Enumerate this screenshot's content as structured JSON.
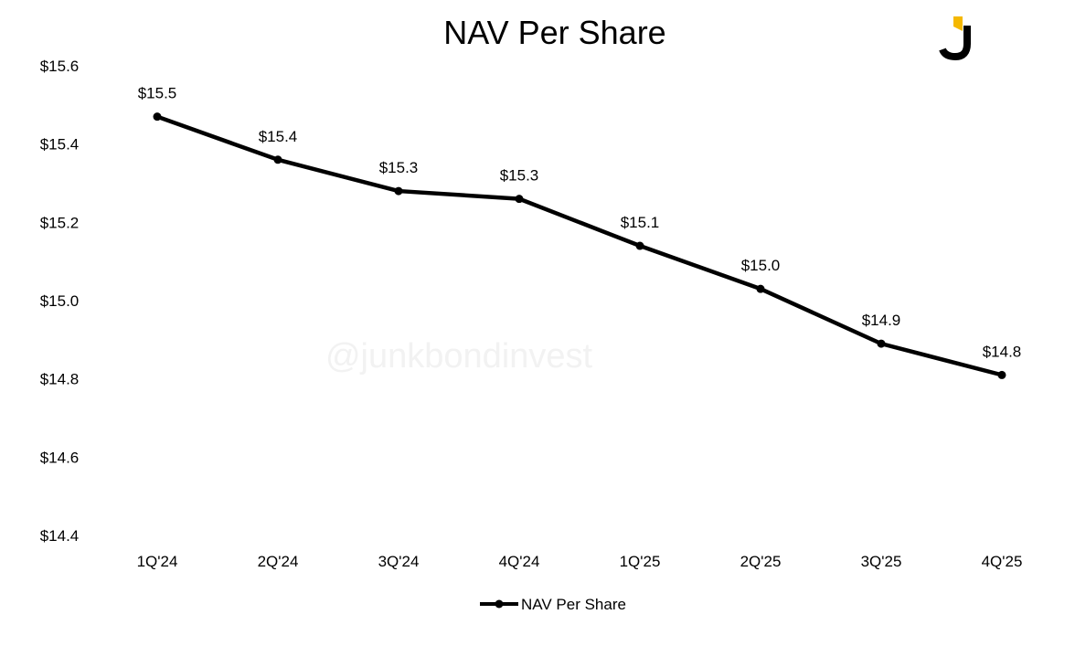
{
  "chart_data": {
    "type": "line",
    "title": "NAV Per Share",
    "categories": [
      "1Q'24",
      "2Q'24",
      "3Q'24",
      "4Q'24",
      "1Q'25",
      "2Q'25",
      "3Q'25",
      "4Q'25"
    ],
    "series": [
      {
        "name": "NAV Per Share",
        "values": [
          15.47,
          15.36,
          15.28,
          15.26,
          15.14,
          15.03,
          14.89,
          14.81
        ],
        "labels": [
          "$15.5",
          "$15.4",
          "$15.3",
          "$15.3",
          "$15.1",
          "$15.0",
          "$14.9",
          "$14.8"
        ],
        "color": "#000000"
      }
    ],
    "yticks": [
      "$15.6",
      "$15.4",
      "$15.2",
      "$15.0",
      "$14.8",
      "$14.6",
      "$14.4"
    ],
    "ylim": [
      14.4,
      15.6
    ],
    "xlabel": "",
    "ylabel": "",
    "grid": false,
    "legend": "bottom-center"
  },
  "watermark": "@junkbondinvest",
  "logo": {
    "letter": "J",
    "colors": {
      "accent": "#F5B800",
      "main": "#000000"
    }
  }
}
